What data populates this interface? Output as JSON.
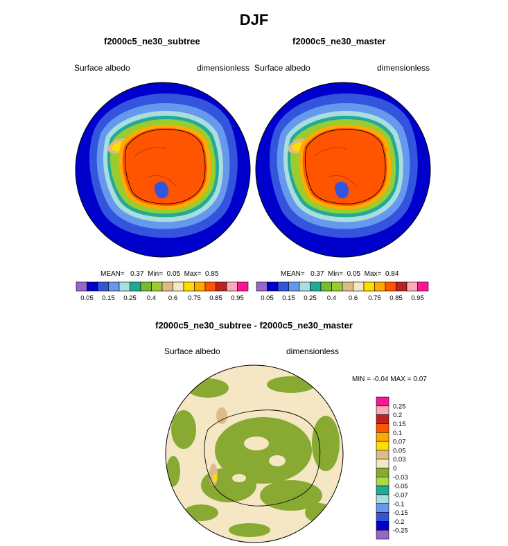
{
  "title": "DJF",
  "panels": [
    {
      "title": "f2000c5_ne30_subtree",
      "left_label": "Surface albedo",
      "right_label": "dimensionless",
      "stats": {
        "mean_label": "MEAN=",
        "mean": "0.37",
        "min_label": "Min=",
        "min": "0.05",
        "max_label": "Max=",
        "max": "0.85"
      }
    },
    {
      "title": "f2000c5_ne30_master",
      "left_label": "Surface albedo",
      "right_label": "dimensionless",
      "stats": {
        "mean_label": "MEAN=",
        "mean": "0.37",
        "min_label": "Min=",
        "min": "0.05",
        "max_label": "Max=",
        "max": "0.84"
      }
    }
  ],
  "difference": {
    "title": "f2000c5_ne30_subtree - f2000c5_ne30_master",
    "left_label": "Surface albedo",
    "right_label": "dimensionless",
    "minmax": "MIN =  -0.04 MAX =   0.07"
  },
  "colorbars": {
    "top_labels": [
      "0.05",
      "0.15",
      "0.25",
      "0.4",
      "0.6",
      "0.75",
      "0.85",
      "0.95"
    ],
    "top_colors": [
      "#9966cc",
      "#0000cc",
      "#3355dd",
      "#6699ee",
      "#aadddd",
      "#22aa99",
      "#77bb33",
      "#99cc33",
      "#ddbb88",
      "#f5e6c4",
      "#ffdd00",
      "#ffaa00",
      "#ff5500",
      "#bb2222",
      "#ffaabb",
      "#ff1493"
    ],
    "diff_labels": [
      "0.25",
      "0.2",
      "0.15",
      "0.1",
      "0.07",
      "0.05",
      "0.03",
      "0",
      "-0.03",
      "-0.05",
      "-0.07",
      "-0.1",
      "-0.15",
      "-0.2",
      "-0.25"
    ],
    "diff_colors": [
      "#ff1493",
      "#ffaabb",
      "#bb2222",
      "#ff5500",
      "#ffaa00",
      "#ffdd00",
      "#ddbb88",
      "#f5e6c4",
      "#88aa33",
      "#aadd44",
      "#22aa99",
      "#aadddd",
      "#6699ee",
      "#3355dd",
      "#0000cc",
      "#9966cc"
    ]
  },
  "chart_data": [
    {
      "type": "heatmap",
      "title": "f2000c5_ne30_subtree",
      "projection": "south polar stereographic",
      "variable": "Surface albedo",
      "units": "dimensionless",
      "mean": 0.37,
      "min": 0.05,
      "max": 0.85,
      "contour_levels": [
        0.05,
        0.1,
        0.15,
        0.2,
        0.25,
        0.3,
        0.4,
        0.5,
        0.6,
        0.7,
        0.75,
        0.8,
        0.85,
        0.9,
        0.95
      ]
    },
    {
      "type": "heatmap",
      "title": "f2000c5_ne30_master",
      "projection": "south polar stereographic",
      "variable": "Surface albedo",
      "units": "dimensionless",
      "mean": 0.37,
      "min": 0.05,
      "max": 0.84,
      "contour_levels": [
        0.05,
        0.1,
        0.15,
        0.2,
        0.25,
        0.3,
        0.4,
        0.5,
        0.6,
        0.7,
        0.75,
        0.8,
        0.85,
        0.9,
        0.95
      ]
    },
    {
      "type": "heatmap",
      "title": "f2000c5_ne30_subtree - f2000c5_ne30_master",
      "projection": "south polar stereographic",
      "variable": "Surface albedo",
      "units": "dimensionless",
      "min": -0.04,
      "max": 0.07,
      "contour_levels": [
        -0.25,
        -0.2,
        -0.15,
        -0.1,
        -0.07,
        -0.05,
        -0.03,
        0,
        0.03,
        0.05,
        0.07,
        0.1,
        0.15,
        0.2,
        0.25
      ]
    }
  ]
}
